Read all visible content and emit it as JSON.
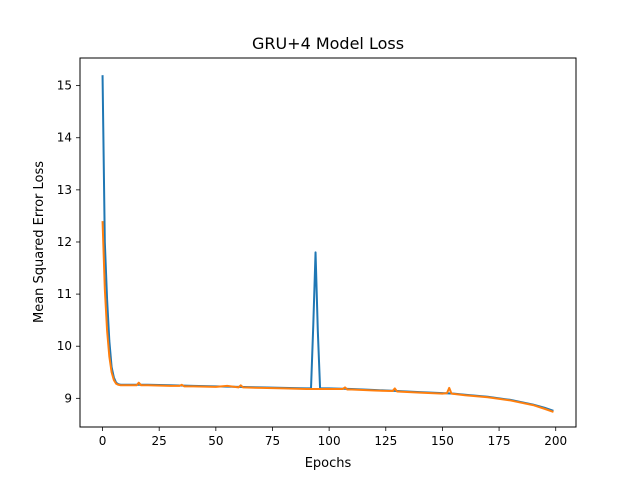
{
  "chart_data": {
    "type": "line",
    "title": "GRU+4 Model Loss",
    "xlabel": "Epochs",
    "ylabel": "Mean Squared Error Loss",
    "xlim": [
      -9.95,
      208.95
    ],
    "ylim": [
      8.45,
      15.53
    ],
    "xticks": [
      0,
      25,
      50,
      75,
      100,
      125,
      150,
      175,
      200
    ],
    "yticks": [
      9,
      10,
      11,
      12,
      13,
      14,
      15
    ],
    "grid": false,
    "legend": "none",
    "colors": {
      "series1": "#1f77b4",
      "series2": "#ff7f0e"
    },
    "series": [
      {
        "x": [
          0,
          1,
          2,
          3,
          4,
          5,
          6,
          7,
          8,
          10,
          15,
          20,
          30,
          40,
          50,
          60,
          70,
          80,
          90,
          92,
          93,
          94,
          95,
          96,
          100,
          110,
          120,
          130,
          140,
          150,
          155,
          160,
          170,
          180,
          190,
          195,
          199
        ],
        "values": [
          15.2,
          12.0,
          10.9,
          10.1,
          9.6,
          9.4,
          9.3,
          9.27,
          9.26,
          9.26,
          9.26,
          9.26,
          9.25,
          9.24,
          9.23,
          9.22,
          9.21,
          9.2,
          9.19,
          9.19,
          10.4,
          11.8,
          10.3,
          9.19,
          9.19,
          9.18,
          9.16,
          9.14,
          9.12,
          9.1,
          9.09,
          9.07,
          9.03,
          8.97,
          8.88,
          8.82,
          8.76
        ]
      },
      {
        "x": [
          0,
          1,
          2,
          3,
          4,
          5,
          6,
          7,
          8,
          10,
          15,
          16,
          17,
          20,
          30,
          34,
          35,
          36,
          40,
          50,
          55,
          60,
          61,
          62,
          70,
          80,
          90,
          100,
          106,
          107,
          108,
          110,
          120,
          128,
          129,
          130,
          140,
          150,
          152,
          153,
          154,
          160,
          170,
          180,
          190,
          195,
          199
        ],
        "values": [
          12.4,
          11.1,
          10.3,
          9.8,
          9.5,
          9.35,
          9.28,
          9.26,
          9.25,
          9.25,
          9.25,
          9.3,
          9.25,
          9.25,
          9.24,
          9.24,
          9.26,
          9.23,
          9.23,
          9.22,
          9.24,
          9.21,
          9.25,
          9.21,
          9.2,
          9.19,
          9.18,
          9.18,
          9.18,
          9.21,
          9.17,
          9.17,
          9.15,
          9.14,
          9.19,
          9.13,
          9.11,
          9.09,
          9.1,
          9.2,
          9.09,
          9.06,
          9.02,
          8.96,
          8.87,
          8.8,
          8.74
        ]
      }
    ]
  }
}
